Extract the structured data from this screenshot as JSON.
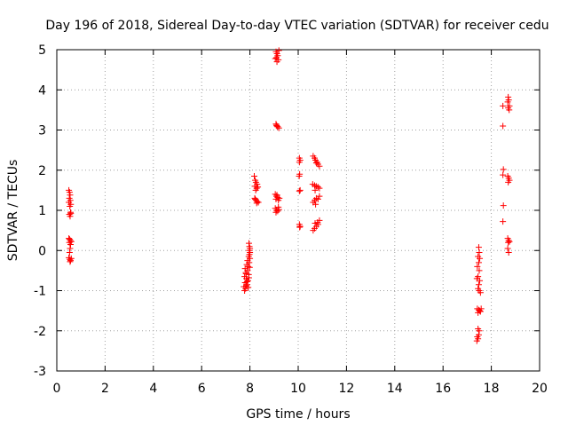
{
  "chart_data": {
    "type": "scatter",
    "title": "Day 196 of 2018, Sidereal Day-to-day VTEC variation (SDTVAR) for receiver cedu",
    "xlabel": "GPS time / hours",
    "ylabel": "SDTVAR / TECUs",
    "xlim": [
      0,
      20
    ],
    "ylim": [
      -3,
      5
    ],
    "xticks": [
      "0",
      "2",
      "4",
      "6",
      "8",
      "10",
      "12",
      "14",
      "16",
      "18",
      "20"
    ],
    "yticks": [
      "-3",
      "-2",
      "-1",
      "0",
      "1",
      "2",
      "3",
      "4",
      "5"
    ],
    "grid": true,
    "marker": "plus",
    "color": "#ff0000",
    "series": [
      {
        "points": [
          [
            0.5,
            1.5
          ],
          [
            0.53,
            1.45
          ],
          [
            0.55,
            1.38
          ],
          [
            0.52,
            1.3
          ],
          [
            0.56,
            1.25
          ],
          [
            0.5,
            1.2
          ],
          [
            0.58,
            1.15
          ],
          [
            0.54,
            1.1
          ],
          [
            0.57,
            0.95
          ],
          [
            0.52,
            0.9
          ],
          [
            0.55,
            0.85
          ],
          [
            0.58,
            0.92
          ],
          [
            0.5,
            0.3
          ],
          [
            0.53,
            0.28
          ],
          [
            0.56,
            0.25
          ],
          [
            0.6,
            0.22
          ],
          [
            0.52,
            0.2
          ],
          [
            0.57,
            0.15
          ],
          [
            0.55,
            0.05
          ],
          [
            0.53,
            -0.05
          ],
          [
            0.5,
            -0.18
          ],
          [
            0.54,
            -0.22
          ],
          [
            0.57,
            -0.25
          ],
          [
            0.6,
            -0.2
          ],
          [
            0.55,
            -0.28
          ],
          [
            7.78,
            -1.0
          ],
          [
            7.82,
            -0.95
          ],
          [
            7.75,
            -0.9
          ],
          [
            7.88,
            -0.85
          ],
          [
            7.8,
            -0.8
          ],
          [
            7.92,
            -0.75
          ],
          [
            7.85,
            -0.7
          ],
          [
            7.78,
            -0.65
          ],
          [
            7.95,
            -0.6
          ],
          [
            7.83,
            -0.55
          ],
          [
            7.9,
            -0.5
          ],
          [
            7.8,
            -0.45
          ],
          [
            7.93,
            -0.4
          ],
          [
            7.87,
            -0.35
          ],
          [
            7.97,
            -0.3
          ],
          [
            7.9,
            -0.25
          ],
          [
            8.0,
            -0.2
          ],
          [
            7.95,
            -0.15
          ],
          [
            7.98,
            -0.1
          ],
          [
            8.0,
            -0.05
          ],
          [
            7.97,
            0.0
          ],
          [
            8.0,
            0.05
          ],
          [
            7.98,
            0.1
          ],
          [
            7.96,
            0.18
          ],
          [
            7.85,
            -0.88
          ],
          [
            7.93,
            -0.92
          ],
          [
            7.88,
            -0.78
          ],
          [
            7.96,
            -0.68
          ],
          [
            7.84,
            -0.58
          ],
          [
            7.99,
            -0.42
          ],
          [
            8.18,
            1.85
          ],
          [
            8.22,
            1.75
          ],
          [
            8.25,
            1.7
          ],
          [
            8.3,
            1.65
          ],
          [
            8.2,
            1.6
          ],
          [
            8.28,
            1.55
          ],
          [
            8.33,
            1.58
          ],
          [
            8.24,
            1.5
          ],
          [
            8.2,
            1.3
          ],
          [
            8.25,
            1.25
          ],
          [
            8.3,
            1.22
          ],
          [
            8.35,
            1.2
          ],
          [
            8.28,
            1.18
          ],
          [
            8.22,
            1.28
          ],
          [
            9.08,
            4.95
          ],
          [
            9.12,
            4.9
          ],
          [
            9.15,
            4.85
          ],
          [
            9.1,
            4.8
          ],
          [
            9.05,
            4.78
          ],
          [
            9.18,
            4.75
          ],
          [
            9.12,
            4.7
          ],
          [
            9.2,
            4.98
          ],
          [
            9.08,
            3.15
          ],
          [
            9.12,
            3.1
          ],
          [
            9.15,
            3.08
          ],
          [
            9.2,
            3.05
          ],
          [
            9.1,
            3.12
          ],
          [
            9.05,
            1.4
          ],
          [
            9.1,
            1.35
          ],
          [
            9.15,
            1.32
          ],
          [
            9.22,
            1.3
          ],
          [
            9.08,
            1.28
          ],
          [
            9.18,
            1.25
          ],
          [
            9.12,
            1.38
          ],
          [
            9.05,
            1.05
          ],
          [
            9.1,
            1.0
          ],
          [
            9.15,
            0.98
          ],
          [
            9.2,
            1.02
          ],
          [
            9.08,
            0.95
          ],
          [
            9.18,
            1.08
          ],
          [
            10.05,
            2.3
          ],
          [
            10.08,
            2.25
          ],
          [
            10.05,
            2.2
          ],
          [
            10.06,
            1.9
          ],
          [
            10.04,
            1.85
          ],
          [
            10.08,
            1.5
          ],
          [
            10.05,
            1.48
          ],
          [
            10.05,
            0.65
          ],
          [
            10.08,
            0.6
          ],
          [
            10.06,
            0.58
          ],
          [
            10.62,
            2.35
          ],
          [
            10.68,
            2.3
          ],
          [
            10.72,
            2.25
          ],
          [
            10.78,
            2.2
          ],
          [
            10.82,
            2.15
          ],
          [
            10.88,
            2.1
          ],
          [
            10.75,
            2.18
          ],
          [
            10.6,
            1.65
          ],
          [
            10.68,
            1.62
          ],
          [
            10.75,
            1.6
          ],
          [
            10.82,
            1.58
          ],
          [
            10.88,
            1.55
          ],
          [
            10.7,
            1.5
          ],
          [
            10.62,
            1.2
          ],
          [
            10.68,
            1.25
          ],
          [
            10.75,
            1.3
          ],
          [
            10.82,
            1.28
          ],
          [
            10.88,
            1.35
          ],
          [
            10.72,
            1.15
          ],
          [
            10.62,
            0.5
          ],
          [
            10.68,
            0.55
          ],
          [
            10.75,
            0.6
          ],
          [
            10.82,
            0.65
          ],
          [
            10.88,
            0.75
          ],
          [
            10.7,
            0.68
          ],
          [
            10.8,
            0.7
          ],
          [
            17.48,
            0.08
          ],
          [
            17.5,
            -0.05
          ],
          [
            17.45,
            -0.15
          ],
          [
            17.52,
            -0.2
          ],
          [
            17.48,
            -0.3
          ],
          [
            17.42,
            -0.4
          ],
          [
            17.5,
            -0.5
          ],
          [
            17.45,
            -0.65
          ],
          [
            17.4,
            -0.7
          ],
          [
            17.52,
            -0.75
          ],
          [
            17.48,
            -0.85
          ],
          [
            17.45,
            -0.95
          ],
          [
            17.5,
            -1.0
          ],
          [
            17.55,
            -1.05
          ],
          [
            17.42,
            -1.45
          ],
          [
            17.48,
            -1.48
          ],
          [
            17.52,
            -1.5
          ],
          [
            17.58,
            -1.45
          ],
          [
            17.45,
            -1.55
          ],
          [
            17.55,
            -1.52
          ],
          [
            17.45,
            -1.95
          ],
          [
            17.5,
            -2.0
          ],
          [
            17.48,
            -2.1
          ],
          [
            17.42,
            -2.15
          ],
          [
            17.45,
            -2.2
          ],
          [
            17.4,
            -2.25
          ],
          [
            18.48,
            3.6
          ],
          [
            18.48,
            3.1
          ],
          [
            18.5,
            2.02
          ],
          [
            18.48,
            1.88
          ],
          [
            18.5,
            1.12
          ],
          [
            18.48,
            0.72
          ],
          [
            18.7,
            3.82
          ],
          [
            18.72,
            3.75
          ],
          [
            18.68,
            3.7
          ],
          [
            18.75,
            3.6
          ],
          [
            18.7,
            3.55
          ],
          [
            18.74,
            3.5
          ],
          [
            18.68,
            1.85
          ],
          [
            18.72,
            1.8
          ],
          [
            18.75,
            1.75
          ],
          [
            18.7,
            1.7
          ],
          [
            18.68,
            0.3
          ],
          [
            18.72,
            0.25
          ],
          [
            18.7,
            0.2
          ],
          [
            18.75,
            0.22
          ],
          [
            18.68,
            0.05
          ],
          [
            18.72,
            -0.05
          ]
        ]
      }
    ]
  }
}
